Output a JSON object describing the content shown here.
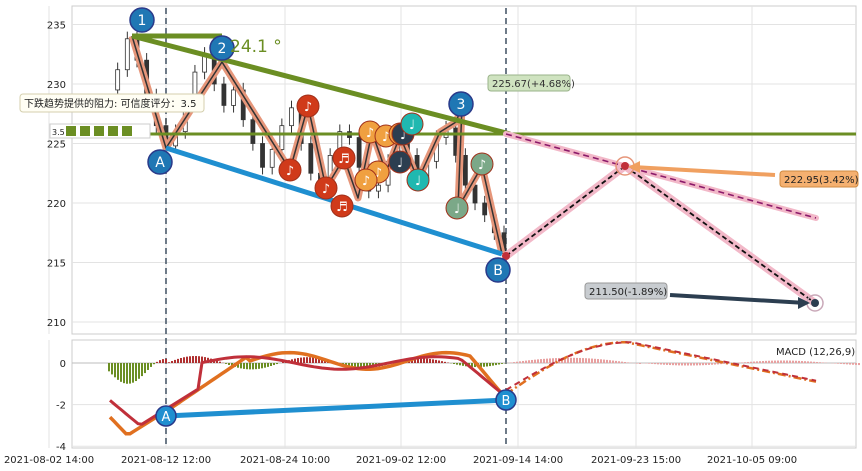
{
  "chart_data": [
    {
      "type": "candlestick",
      "panel": "price",
      "ylim": [
        209,
        236
      ],
      "yticks": [
        210,
        215,
        220,
        225,
        230,
        235
      ],
      "xticks": [
        "2021-08-02 14:00",
        "2021-08-12 12:00",
        "2021-08-24 10:00",
        "2021-09-02 12:00",
        "2021-09-14 14:00",
        "2021-09-23 15:00",
        "2021-10-05 09:00"
      ],
      "close_series": [
        229.5,
        231.2,
        233.8,
        232.0,
        229.0,
        226.5,
        224.8,
        226.0,
        228.5,
        231.0,
        232.5,
        230.0,
        228.2,
        229.5,
        227.0,
        225.0,
        223.0,
        224.5,
        226.5,
        228.0,
        225.0,
        222.5,
        221.0,
        224.0,
        226.0,
        225.5,
        223.0,
        221.0,
        221.5,
        223.5,
        225.0,
        224.0,
        222.0,
        223.5,
        225.5,
        226.3,
        224.0,
        221.5,
        220.0,
        219.0,
        217.5,
        216.0
      ],
      "trend_lines": {
        "resistance_label": "下跌趋势提供的阻力: 可信度评分：3.5",
        "score": "3.5",
        "horizontal_level": 225.6,
        "angle_label": "24.1 °"
      },
      "annotations": [
        {
          "text": "225.67(+4.68%)"
        },
        {
          "text": "222.95(3.42%)"
        },
        {
          "text": "211.50(-1.89%)"
        }
      ],
      "points": [
        {
          "label": "1",
          "color": "#1f77b4"
        },
        {
          "label": "2",
          "color": "#1f77b4"
        },
        {
          "label": "3",
          "color": "#1f77b4"
        },
        {
          "label": "A",
          "color": "#1f77b4"
        },
        {
          "label": "B",
          "color": "#1f77b4"
        }
      ],
      "note_icons": {
        "music_note": "♫",
        "note": "♪",
        "beamed": "♬",
        "quarter": "♩"
      }
    },
    {
      "type": "line",
      "panel": "macd",
      "legend": "MACD (12,26,9)",
      "ylim": [
        -4,
        1.2
      ],
      "yticks": [
        0,
        -2,
        -4
      ],
      "points": [
        {
          "label": "A"
        },
        {
          "label": "B"
        }
      ],
      "series": [
        {
          "color": "#e07020"
        },
        {
          "color": "#c0303a"
        }
      ]
    }
  ],
  "colors": {
    "green_line": "#6b8e23",
    "blue_line": "#1f8fd0",
    "salmon": "#e6967a",
    "pink_dash": "#f2b8c8",
    "bar_up": "#b03030",
    "bar_down": "#6b8e23",
    "future_bar": "#e8a0a0"
  }
}
